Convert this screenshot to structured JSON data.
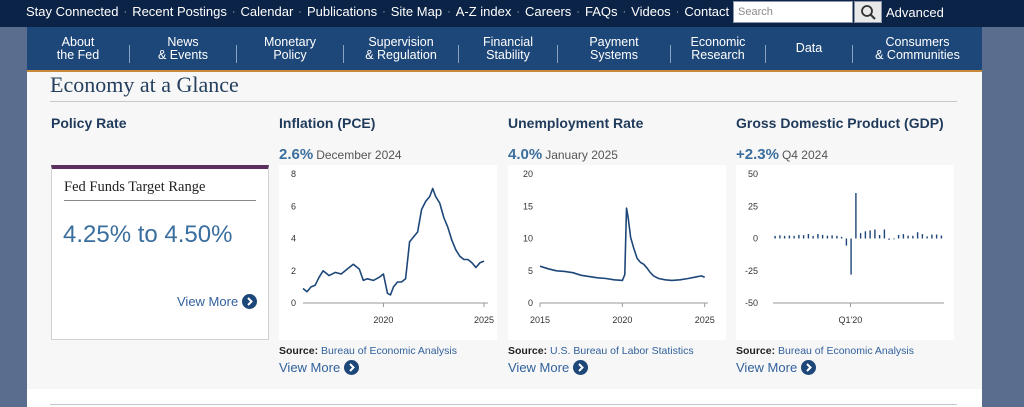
{
  "topbar": {
    "links": [
      "Stay Connected",
      "Recent Postings",
      "Calendar",
      "Publications",
      "Site Map",
      "A-Z index",
      "Careers",
      "FAQs",
      "Videos",
      "Contact"
    ],
    "search_placeholder": "Search",
    "advanced_label": "Advanced"
  },
  "nav": {
    "items": [
      {
        "line1": "About",
        "line2": "the Fed"
      },
      {
        "line1": "News",
        "line2": "& Events"
      },
      {
        "line1": "Monetary",
        "line2": "Policy"
      },
      {
        "line1": "Supervision",
        "line2": "& Regulation"
      },
      {
        "line1": "Financial",
        "line2": "Stability"
      },
      {
        "line1": "Payment",
        "line2": "Systems"
      },
      {
        "line1": "Economic",
        "line2": "Research"
      },
      {
        "line1": "Data",
        "line2": ""
      },
      {
        "line1": "Consumers",
        "line2": "& Communities"
      }
    ]
  },
  "page": {
    "title": "Economy at a Glance"
  },
  "policy": {
    "title": "Policy Rate",
    "box_title": "Fed Funds Target Range",
    "value": "4.25% to 4.50%",
    "view_more": "View More"
  },
  "inflation": {
    "title": "Inflation (PCE)",
    "value": "2.6%",
    "period": "December 2024",
    "source_label": "Source:",
    "source": "Bureau of Economic Analysis",
    "view_more": "View More"
  },
  "unemployment": {
    "title": "Unemployment Rate",
    "value": "4.0%",
    "period": "January 2025",
    "source_label": "Source:",
    "source": "U.S. Bureau of Labor Statistics",
    "view_more": "View More"
  },
  "gdp": {
    "title": "Gross Domestic Product (GDP)",
    "value": "+2.3%",
    "period": "Q4 2024",
    "source_label": "Source:",
    "source": "Bureau of Economic Analysis",
    "view_more": "View More"
  },
  "colors": {
    "topbar": "#0b2346",
    "nav": "#1e4779",
    "nav_accent": "#c9893b",
    "line": "#1e4779",
    "value_blue": "#3a6e9e",
    "policy_accent": "#5b2f5f"
  },
  "icons": {
    "search": "magnifier-icon",
    "view_more": "chevron-right-circle-icon"
  },
  "chart_data": [
    {
      "type": "line",
      "name": "inflation-pce",
      "x": [
        2016.0,
        2016.2,
        2016.4,
        2016.6,
        2016.8,
        2017.0,
        2017.3,
        2017.6,
        2017.9,
        2018.2,
        2018.5,
        2018.8,
        2019.0,
        2019.2,
        2019.5,
        2019.8,
        2020.0,
        2020.2,
        2020.35,
        2020.5,
        2020.7,
        2020.9,
        2021.1,
        2021.3,
        2021.5,
        2021.7,
        2021.9,
        2022.1,
        2022.3,
        2022.45,
        2022.6,
        2022.8,
        2023.0,
        2023.2,
        2023.4,
        2023.6,
        2023.8,
        2024.0,
        2024.2,
        2024.4,
        2024.6,
        2024.8,
        2025.0
      ],
      "y": [
        0.9,
        0.7,
        1.0,
        1.1,
        1.6,
        2.0,
        1.7,
        1.9,
        1.8,
        2.1,
        2.4,
        2.1,
        1.4,
        1.5,
        1.4,
        1.6,
        1.8,
        0.6,
        0.5,
        1.0,
        1.3,
        1.3,
        1.5,
        3.8,
        4.1,
        4.4,
        5.8,
        6.3,
        6.6,
        7.1,
        6.6,
        6.2,
        5.3,
        4.7,
        3.9,
        3.3,
        2.9,
        2.7,
        2.7,
        2.5,
        2.2,
        2.5,
        2.6
      ],
      "xlim": [
        2016,
        2025.2
      ],
      "ylim": [
        0,
        8
      ],
      "x_ticks": [
        "2020",
        "2025"
      ],
      "y_ticks": [
        "0",
        "2",
        "4",
        "6",
        "8"
      ]
    },
    {
      "type": "line",
      "name": "unemployment-rate",
      "x": [
        2015.0,
        2015.5,
        2016.0,
        2016.5,
        2017.0,
        2017.5,
        2018.0,
        2018.5,
        2019.0,
        2019.5,
        2020.0,
        2020.15,
        2020.25,
        2020.35,
        2020.5,
        2020.7,
        2020.9,
        2021.1,
        2021.3,
        2021.5,
        2021.7,
        2021.9,
        2022.2,
        2022.6,
        2023.0,
        2023.5,
        2024.0,
        2024.4,
        2024.8,
        2025.0
      ],
      "y": [
        5.7,
        5.3,
        5.0,
        4.9,
        4.7,
        4.3,
        4.1,
        3.9,
        3.8,
        3.6,
        3.5,
        4.4,
        14.7,
        13.3,
        10.2,
        8.4,
        6.9,
        6.3,
        6.0,
        5.4,
        4.7,
        4.2,
        3.8,
        3.6,
        3.5,
        3.6,
        3.8,
        4.0,
        4.2,
        4.0
      ],
      "xlim": [
        2015,
        2025.2
      ],
      "ylim": [
        0,
        20
      ],
      "x_ticks": [
        "2015",
        "2020",
        "2025"
      ],
      "y_ticks": [
        "0",
        "5",
        "10",
        "15",
        "20"
      ]
    },
    {
      "type": "bar",
      "name": "gdp-growth",
      "values": [
        2.0,
        2.5,
        2.0,
        2.3,
        2.0,
        2.8,
        2.6,
        3.5,
        2.0,
        3.5,
        2.8,
        2.2,
        2.5,
        2.1,
        1.3,
        -5.5,
        -28.0,
        35.3,
        4.2,
        5.6,
        6.3,
        7.0,
        2.7,
        7.0,
        -1.0,
        -0.6,
        2.7,
        3.4,
        2.2,
        2.1,
        4.9,
        3.4,
        1.6,
        3.0,
        3.1,
        2.3
      ],
      "highlight_label": "Q1'20",
      "ylim": [
        -50,
        50
      ],
      "y_ticks": [
        "50",
        "25",
        "0",
        "-25",
        "-50"
      ]
    }
  ]
}
